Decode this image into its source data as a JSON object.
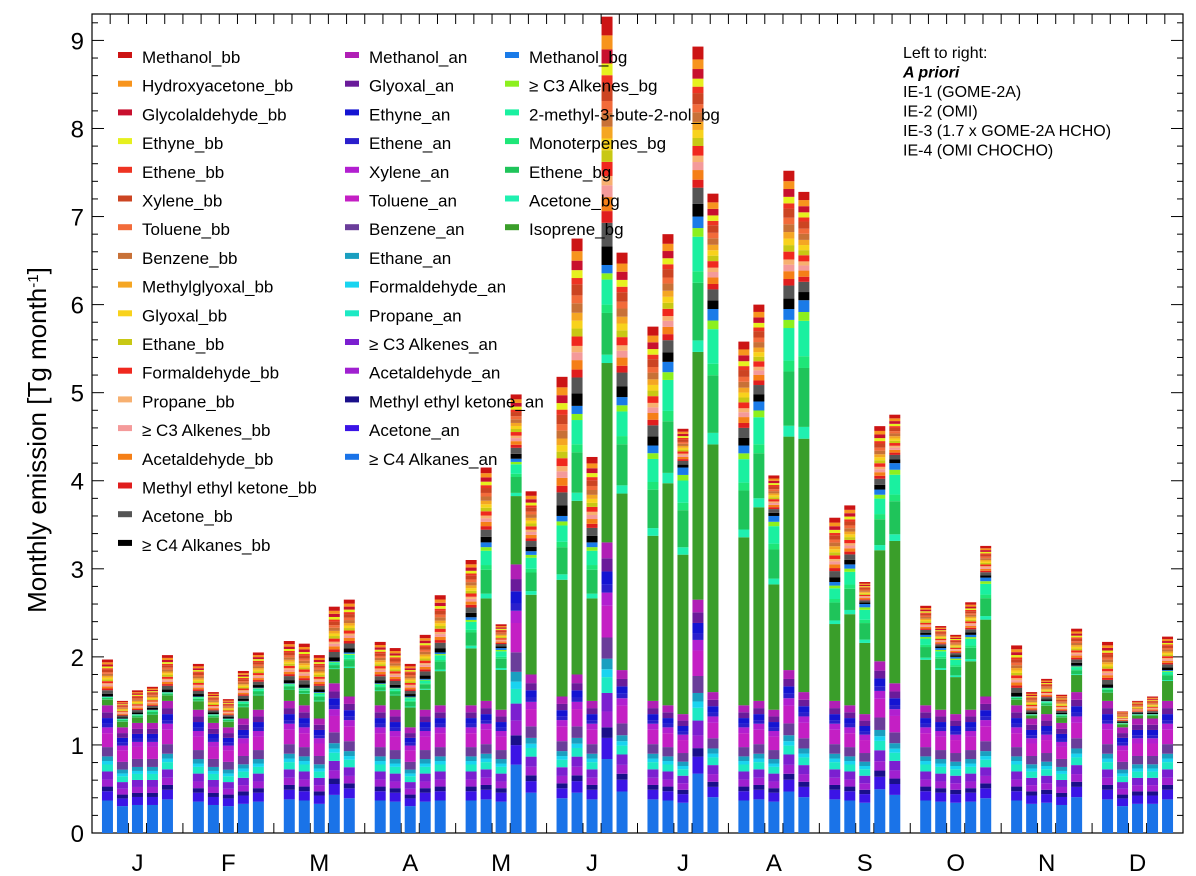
{
  "chart_data": {
    "type": "bar",
    "stacked": true,
    "ylabel": "Monthly emission [Tg month",
    "ylabel_sup": "-1",
    "ylabel_end": "]",
    "ylim": [
      0,
      9.3
    ],
    "yticks": [
      "0",
      "1",
      "2",
      "3",
      "4",
      "5",
      "6",
      "7",
      "8",
      "9"
    ],
    "months": [
      "J",
      "F",
      "M",
      "A",
      "M",
      "J",
      "J",
      "A",
      "S",
      "O",
      "N",
      "D"
    ],
    "bars_per_month": [
      "A priori",
      "IE-1 (GOME-2A)",
      "IE-2 (OMI)",
      "IE-3 (1.7 x GOME-2A HCHO)",
      "IE-4 (OMI CHOCHO)"
    ],
    "legend_note": [
      "Left to right:",
      "A priori",
      "IE-1 (GOME-2A)",
      "IE-2 (OMI)",
      "IE-3 (1.7 x GOME-2A HCHO)",
      "IE-4 (OMI CHOCHO)"
    ],
    "legend_columns": [
      [
        {
          "name": "Methanol_bb",
          "color": "#cc1414"
        },
        {
          "name": "Hydroxyacetone_bb",
          "color": "#f7941d"
        },
        {
          "name": "Glycolaldehyde_bb",
          "color": "#c8102e"
        },
        {
          "name": "Ethyne_bb",
          "color": "#e6f01e"
        },
        {
          "name": "Ethene_bb",
          "color": "#ee3322"
        },
        {
          "name": "Xylene_bb",
          "color": "#cc4422"
        },
        {
          "name": "Toluene_bb",
          "color": "#f26b3a"
        },
        {
          "name": "Benzene_bb",
          "color": "#c87137"
        },
        {
          "name": "Methylglyoxal_bb",
          "color": "#f5a623"
        },
        {
          "name": "Glyoxal_bb",
          "color": "#f8d21c"
        },
        {
          "name": "Ethane_bb",
          "color": "#c8c814"
        },
        {
          "name": "Formaldehyde_bb",
          "color": "#f0281e"
        },
        {
          "name": "Propane_bb",
          "color": "#f7b070"
        },
        {
          "name": "≥ C3 Alkenes_bb",
          "color": "#f49a9a"
        },
        {
          "name": "Acetaldehyde_bb",
          "color": "#f57f17"
        },
        {
          "name": "Methyl ethyl ketone_bb",
          "color": "#e01e1e"
        },
        {
          "name": "Acetone_bb",
          "color": "#555555"
        },
        {
          "name": "≥ C4 Alkanes_bb",
          "color": "#000000"
        }
      ],
      [
        {
          "name": "Methanol_an",
          "color": "#b01fb5"
        },
        {
          "name": "Glyoxal_an",
          "color": "#6a1b9a"
        },
        {
          "name": "Ethyne_an",
          "color": "#1414d2"
        },
        {
          "name": "Ethene_an",
          "color": "#2a1fcc"
        },
        {
          "name": "Xylene_an",
          "color": "#b21fd0"
        },
        {
          "name": "Toluene_an",
          "color": "#c41fc4"
        },
        {
          "name": "Benzene_an",
          "color": "#6a3d9a"
        },
        {
          "name": "Ethane_an",
          "color": "#1a9fc0"
        },
        {
          "name": "Formaldehyde_an",
          "color": "#19d4f0"
        },
        {
          "name": "Propane_an",
          "color": "#1de9c4"
        },
        {
          "name": "≥ C3 Alkenes_an",
          "color": "#7b1fd0"
        },
        {
          "name": "Acetaldehyde_an",
          "color": "#a020d0"
        },
        {
          "name": "Methyl ethyl ketone_an",
          "color": "#1a0f8a"
        },
        {
          "name": "Acetone_an",
          "color": "#3b14e6"
        },
        {
          "name": "≥ C4 Alkanes_an",
          "color": "#1a73e8"
        }
      ],
      [
        {
          "name": "Methanol_bg",
          "color": "#1a7be8"
        },
        {
          "name": "≥ C3 Alkenes_bg",
          "color": "#8cf01e"
        },
        {
          "name": "2-methyl-3-bute-2-nol_bg",
          "color": "#1af0a0"
        },
        {
          "name": "Monoterpenes_bg",
          "color": "#1ee678"
        },
        {
          "name": "Ethene_bg",
          "color": "#1fc45a"
        },
        {
          "name": "Acetone_bg",
          "color": "#20f0b0"
        },
        {
          "name": "Isoprene_bg",
          "color": "#3a9e2a"
        }
      ]
    ],
    "totals": [
      [
        1.97,
        1.5,
        1.62,
        1.66,
        2.02
      ],
      [
        1.92,
        1.6,
        1.52,
        1.84,
        2.05
      ],
      [
        2.18,
        2.15,
        2.02,
        2.57,
        2.65
      ],
      [
        2.17,
        2.1,
        1.92,
        2.25,
        2.7
      ],
      [
        3.1,
        4.15,
        2.37,
        4.98,
        3.88
      ],
      [
        5.18,
        6.75,
        4.27,
        9.27,
        6.59
      ],
      [
        5.75,
        6.8,
        4.59,
        8.93,
        7.26
      ],
      [
        5.58,
        6.0,
        4.06,
        7.52,
        7.28
      ],
      [
        3.58,
        3.72,
        2.85,
        4.62,
        4.75
      ],
      [
        2.58,
        2.35,
        2.25,
        2.62,
        3.26
      ],
      [
        2.13,
        1.6,
        1.75,
        1.57,
        2.32
      ],
      [
        2.17,
        1.38,
        1.5,
        1.55,
        2.23
      ]
    ],
    "bg_tops": [
      [
        1.55,
        1.3,
        1.35,
        1.4,
        1.6
      ],
      [
        1.55,
        1.35,
        1.3,
        1.5,
        1.65
      ],
      [
        1.7,
        1.65,
        1.6,
        1.95,
        2.05
      ],
      [
        1.7,
        1.65,
        1.55,
        1.75,
        2.05
      ],
      [
        2.45,
        3.3,
        2.1,
        4.25,
        3.2
      ],
      [
        3.6,
        4.85,
        3.3,
        6.45,
        4.95
      ],
      [
        4.4,
        5.35,
        4.15,
        7.0,
        5.95
      ],
      [
        4.4,
        4.9,
        3.6,
        5.95,
        6.05
      ],
      [
        2.85,
        3.05,
        2.6,
        3.9,
        4.2
      ],
      [
        2.25,
        2.1,
        2.0,
        2.25,
        2.9
      ],
      [
        1.55,
        1.35,
        1.5,
        1.35,
        1.9
      ],
      [
        1.65,
        1.25,
        1.35,
        1.35,
        1.85
      ]
    ],
    "an_tops": [
      [
        1.45,
        1.2,
        1.25,
        1.25,
        1.5
      ],
      [
        1.4,
        1.25,
        1.2,
        1.3,
        1.4
      ],
      [
        1.5,
        1.45,
        1.3,
        1.7,
        1.55
      ],
      [
        1.45,
        1.4,
        1.2,
        1.4,
        1.45
      ],
      [
        1.45,
        1.5,
        1.4,
        3.05,
        1.8
      ],
      [
        1.55,
        1.8,
        1.5,
        3.3,
        1.85
      ],
      [
        1.5,
        1.45,
        1.35,
        2.65,
        1.6
      ],
      [
        1.45,
        1.5,
        1.4,
        1.85,
        1.6
      ],
      [
        1.5,
        1.45,
        1.35,
        1.95,
        1.7
      ],
      [
        1.45,
        1.4,
        1.35,
        1.4,
        1.55
      ],
      [
        1.45,
        1.3,
        1.35,
        1.25,
        1.6
      ],
      [
        1.5,
        1.2,
        1.3,
        1.3,
        1.5
      ]
    ]
  }
}
